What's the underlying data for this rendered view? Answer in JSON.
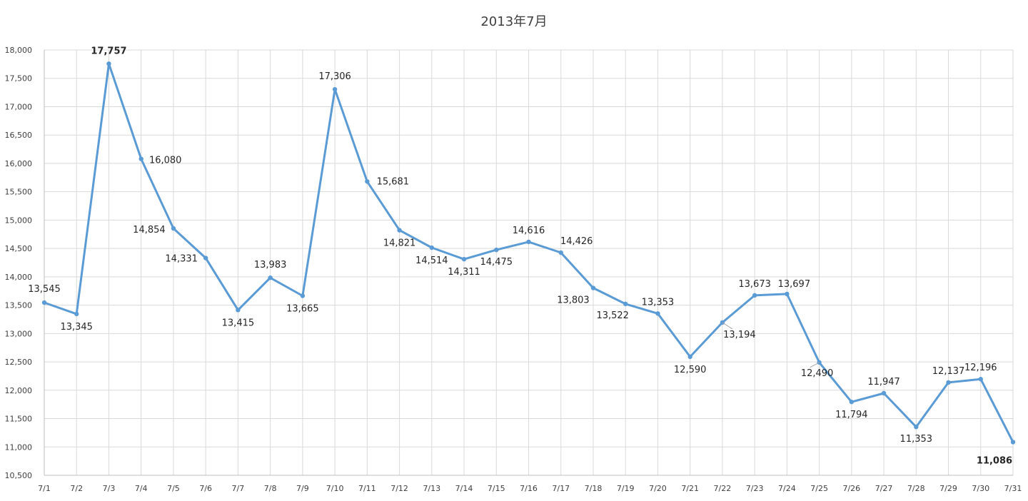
{
  "chart_data": {
    "type": "line",
    "title": "2013年7月",
    "categories": [
      "7/1",
      "7/2",
      "7/3",
      "7/4",
      "7/5",
      "7/6",
      "7/7",
      "7/8",
      "7/9",
      "7/10",
      "7/11",
      "7/12",
      "7/13",
      "7/14",
      "7/15",
      "7/16",
      "7/17",
      "7/18",
      "7/19",
      "7/20",
      "7/21",
      "7/22",
      "7/23",
      "7/24",
      "7/25",
      "7/26",
      "7/27",
      "7/28",
      "7/29",
      "7/30",
      "7/31"
    ],
    "values": [
      13545,
      13345,
      17757,
      16080,
      14854,
      14331,
      13415,
      13983,
      13665,
      17306,
      15681,
      14821,
      14514,
      14311,
      14475,
      14616,
      14426,
      13803,
      13522,
      13353,
      12590,
      13194,
      13673,
      13697,
      12490,
      11794,
      11947,
      11353,
      12137,
      12196,
      11086
    ],
    "data_labels": [
      "13,545",
      "13,345",
      "17,757",
      "16,080",
      "14,854",
      "14,331",
      "13,415",
      "13,983",
      "13,665",
      "17,306",
      "15,681",
      "14,821",
      "14,514",
      "14,311",
      "14,475",
      "14,616",
      "14,426",
      "13,803",
      "13,522",
      "13,353",
      "12,590",
      "13,194",
      "13,673",
      "13,697",
      "12,490",
      "11,794",
      "11,947",
      "11,353",
      "12,137",
      "12,196",
      "11,086"
    ],
    "y_tick_labels": [
      "10,500",
      "11,000",
      "11,500",
      "12,000",
      "12,500",
      "13,000",
      "13,500",
      "14,000",
      "14,500",
      "15,000",
      "15,500",
      "16,000",
      "16,500",
      "17,000",
      "17,500",
      "18,000"
    ],
    "ylim": [
      10500,
      18000
    ],
    "y_step": 500,
    "xlabel": "",
    "ylabel": "",
    "grid": true,
    "legend": "none",
    "colors": {
      "line": "#5b9bd5",
      "max_label": "#c00000",
      "min_label": "#7030a0"
    },
    "highlight": {
      "max_index": 2,
      "min_index": 30
    }
  }
}
